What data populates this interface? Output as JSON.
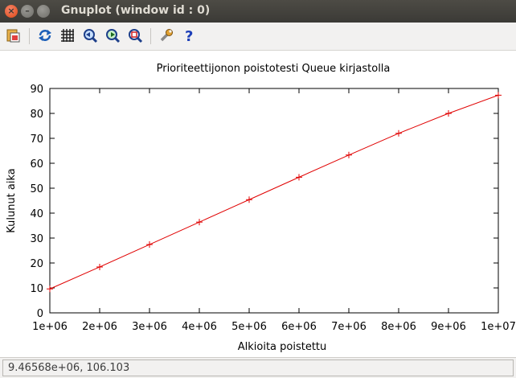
{
  "window": {
    "title": "Gnuplot (window id : 0)"
  },
  "toolbar": {
    "icons": [
      "copy-to-clipboard-icon",
      "replot-icon",
      "grid-icon",
      "zoom-previous-icon",
      "zoom-next-icon",
      "autoscale-icon",
      "preferences-icon",
      "help-icon"
    ]
  },
  "status": {
    "coordinates": "9.46568e+06, 106.103"
  },
  "colors": {
    "series": "#e00000"
  },
  "chart_data": {
    "type": "line",
    "title": "Prioriteettijonon poistotesti Queue kirjastolla",
    "xlabel": "Alkioita poistettu",
    "ylabel": "Kulunut aika",
    "xlim": [
      1000000,
      10000000
    ],
    "ylim": [
      0,
      90
    ],
    "x_ticks": [
      "1e+06",
      "2e+06",
      "3e+06",
      "4e+06",
      "5e+06",
      "6e+06",
      "7e+06",
      "8e+06",
      "9e+06",
      "1e+07"
    ],
    "y_ticks": [
      "0",
      "10",
      "20",
      "30",
      "40",
      "50",
      "60",
      "70",
      "80",
      "90"
    ],
    "x_tick_values": [
      1000000,
      2000000,
      3000000,
      4000000,
      5000000,
      6000000,
      7000000,
      8000000,
      9000000,
      10000000
    ],
    "y_tick_values": [
      0,
      10,
      20,
      30,
      40,
      50,
      60,
      70,
      80,
      90
    ],
    "grid": false,
    "series": [
      {
        "x": [
          1000000,
          2000000,
          3000000,
          4000000,
          5000000,
          6000000,
          7000000,
          8000000,
          9000000,
          10000000
        ],
        "y": [
          9.6,
          18.4,
          27.4,
          36.4,
          45.4,
          54.4,
          63.3,
          72.0,
          80.0,
          87.3
        ]
      }
    ]
  }
}
